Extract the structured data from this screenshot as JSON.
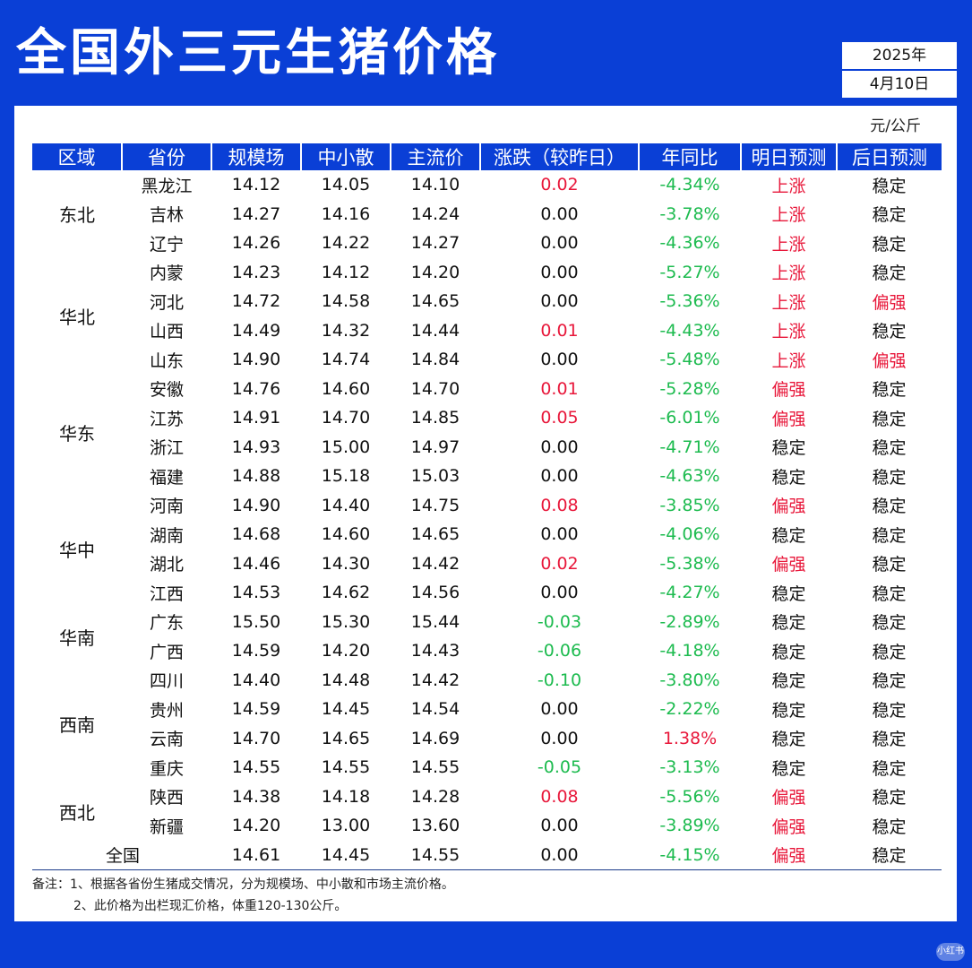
{
  "title": "全国外三元生猪价格",
  "date": {
    "year": "2025年",
    "month_day": "4月10日"
  },
  "unit": "元/公斤",
  "headers": [
    "区域",
    "省份",
    "规模场",
    "中小散",
    "主流价",
    "涨跌（较昨日）",
    "年同比",
    "明日预测",
    "后日预测"
  ],
  "regions": [
    {
      "name": "东北",
      "span": 3
    },
    {
      "name": "华北",
      "span": 4
    },
    {
      "name": "华东",
      "span": 4
    },
    {
      "name": "华中",
      "span": 4
    },
    {
      "name": "华南",
      "span": 2
    },
    {
      "name": "西南",
      "span": 4
    },
    {
      "name": "西北",
      "span": 2
    }
  ],
  "rows": [
    {
      "province": "黑龙江",
      "scale": "14.12",
      "small": "14.05",
      "main": "14.10",
      "change": "0.02",
      "change_dir": "up",
      "yoy": "-4.34%",
      "yoy_dir": "down",
      "tomorrow": "上涨",
      "tomorrow_dir": "up",
      "after": "稳定",
      "after_dir": ""
    },
    {
      "province": "吉林",
      "scale": "14.27",
      "small": "14.16",
      "main": "14.24",
      "change": "0.00",
      "change_dir": "",
      "yoy": "-3.78%",
      "yoy_dir": "down",
      "tomorrow": "上涨",
      "tomorrow_dir": "up",
      "after": "稳定",
      "after_dir": ""
    },
    {
      "province": "辽宁",
      "scale": "14.26",
      "small": "14.22",
      "main": "14.27",
      "change": "0.00",
      "change_dir": "",
      "yoy": "-4.36%",
      "yoy_dir": "down",
      "tomorrow": "上涨",
      "tomorrow_dir": "up",
      "after": "稳定",
      "after_dir": ""
    },
    {
      "province": "内蒙",
      "scale": "14.23",
      "small": "14.12",
      "main": "14.20",
      "change": "0.00",
      "change_dir": "",
      "yoy": "-5.27%",
      "yoy_dir": "down",
      "tomorrow": "上涨",
      "tomorrow_dir": "up",
      "after": "稳定",
      "after_dir": ""
    },
    {
      "province": "河北",
      "scale": "14.72",
      "small": "14.58",
      "main": "14.65",
      "change": "0.00",
      "change_dir": "",
      "yoy": "-5.36%",
      "yoy_dir": "down",
      "tomorrow": "上涨",
      "tomorrow_dir": "up",
      "after": "偏强",
      "after_dir": "up"
    },
    {
      "province": "山西",
      "scale": "14.49",
      "small": "14.32",
      "main": "14.44",
      "change": "0.01",
      "change_dir": "up",
      "yoy": "-4.43%",
      "yoy_dir": "down",
      "tomorrow": "上涨",
      "tomorrow_dir": "up",
      "after": "稳定",
      "after_dir": ""
    },
    {
      "province": "山东",
      "scale": "14.90",
      "small": "14.74",
      "main": "14.84",
      "change": "0.00",
      "change_dir": "",
      "yoy": "-5.48%",
      "yoy_dir": "down",
      "tomorrow": "上涨",
      "tomorrow_dir": "up",
      "after": "偏强",
      "after_dir": "up"
    },
    {
      "province": "安徽",
      "scale": "14.76",
      "small": "14.60",
      "main": "14.70",
      "change": "0.01",
      "change_dir": "up",
      "yoy": "-5.28%",
      "yoy_dir": "down",
      "tomorrow": "偏强",
      "tomorrow_dir": "up",
      "after": "稳定",
      "after_dir": ""
    },
    {
      "province": "江苏",
      "scale": "14.91",
      "small": "14.70",
      "main": "14.85",
      "change": "0.05",
      "change_dir": "up",
      "yoy": "-6.01%",
      "yoy_dir": "down",
      "tomorrow": "偏强",
      "tomorrow_dir": "up",
      "after": "稳定",
      "after_dir": ""
    },
    {
      "province": "浙江",
      "scale": "14.93",
      "small": "15.00",
      "main": "14.97",
      "change": "0.00",
      "change_dir": "",
      "yoy": "-4.71%",
      "yoy_dir": "down",
      "tomorrow": "稳定",
      "tomorrow_dir": "",
      "after": "稳定",
      "after_dir": ""
    },
    {
      "province": "福建",
      "scale": "14.88",
      "small": "15.18",
      "main": "15.03",
      "change": "0.00",
      "change_dir": "",
      "yoy": "-4.63%",
      "yoy_dir": "down",
      "tomorrow": "稳定",
      "tomorrow_dir": "",
      "after": "稳定",
      "after_dir": ""
    },
    {
      "province": "河南",
      "scale": "14.90",
      "small": "14.40",
      "main": "14.75",
      "change": "0.08",
      "change_dir": "up",
      "yoy": "-3.85%",
      "yoy_dir": "down",
      "tomorrow": "偏强",
      "tomorrow_dir": "up",
      "after": "稳定",
      "after_dir": ""
    },
    {
      "province": "湖南",
      "scale": "14.68",
      "small": "14.60",
      "main": "14.65",
      "change": "0.00",
      "change_dir": "",
      "yoy": "-4.06%",
      "yoy_dir": "down",
      "tomorrow": "稳定",
      "tomorrow_dir": "",
      "after": "稳定",
      "after_dir": ""
    },
    {
      "province": "湖北",
      "scale": "14.46",
      "small": "14.30",
      "main": "14.42",
      "change": "0.02",
      "change_dir": "up",
      "yoy": "-5.38%",
      "yoy_dir": "down",
      "tomorrow": "偏强",
      "tomorrow_dir": "up",
      "after": "稳定",
      "after_dir": ""
    },
    {
      "province": "江西",
      "scale": "14.53",
      "small": "14.62",
      "main": "14.56",
      "change": "0.00",
      "change_dir": "",
      "yoy": "-4.27%",
      "yoy_dir": "down",
      "tomorrow": "稳定",
      "tomorrow_dir": "",
      "after": "稳定",
      "after_dir": ""
    },
    {
      "province": "广东",
      "scale": "15.50",
      "small": "15.30",
      "main": "15.44",
      "change": "-0.03",
      "change_dir": "down",
      "yoy": "-2.89%",
      "yoy_dir": "down",
      "tomorrow": "稳定",
      "tomorrow_dir": "",
      "after": "稳定",
      "after_dir": ""
    },
    {
      "province": "广西",
      "scale": "14.59",
      "small": "14.20",
      "main": "14.43",
      "change": "-0.06",
      "change_dir": "down",
      "yoy": "-4.18%",
      "yoy_dir": "down",
      "tomorrow": "稳定",
      "tomorrow_dir": "",
      "after": "稳定",
      "after_dir": ""
    },
    {
      "province": "四川",
      "scale": "14.40",
      "small": "14.48",
      "main": "14.42",
      "change": "-0.10",
      "change_dir": "down",
      "yoy": "-3.80%",
      "yoy_dir": "down",
      "tomorrow": "稳定",
      "tomorrow_dir": "",
      "after": "稳定",
      "after_dir": ""
    },
    {
      "province": "贵州",
      "scale": "14.59",
      "small": "14.45",
      "main": "14.54",
      "change": "0.00",
      "change_dir": "",
      "yoy": "-2.22%",
      "yoy_dir": "down",
      "tomorrow": "稳定",
      "tomorrow_dir": "",
      "after": "稳定",
      "after_dir": ""
    },
    {
      "province": "云南",
      "scale": "14.70",
      "small": "14.65",
      "main": "14.69",
      "change": "0.00",
      "change_dir": "",
      "yoy": "1.38%",
      "yoy_dir": "up",
      "tomorrow": "稳定",
      "tomorrow_dir": "",
      "after": "稳定",
      "after_dir": ""
    },
    {
      "province": "重庆",
      "scale": "14.55",
      "small": "14.55",
      "main": "14.55",
      "change": "-0.05",
      "change_dir": "down",
      "yoy": "-3.13%",
      "yoy_dir": "down",
      "tomorrow": "稳定",
      "tomorrow_dir": "",
      "after": "稳定",
      "after_dir": ""
    },
    {
      "province": "陕西",
      "scale": "14.38",
      "small": "14.18",
      "main": "14.28",
      "change": "0.08",
      "change_dir": "up",
      "yoy": "-5.56%",
      "yoy_dir": "down",
      "tomorrow": "偏强",
      "tomorrow_dir": "up",
      "after": "稳定",
      "after_dir": ""
    },
    {
      "province": "新疆",
      "scale": "14.20",
      "small": "13.00",
      "main": "13.60",
      "change": "0.00",
      "change_dir": "",
      "yoy": "-3.89%",
      "yoy_dir": "down",
      "tomorrow": "偏强",
      "tomorrow_dir": "up",
      "after": "稳定",
      "after_dir": ""
    }
  ],
  "total": {
    "label": "全国",
    "scale": "14.61",
    "small": "14.45",
    "main": "14.55",
    "change": "0.00",
    "change_dir": "",
    "yoy": "-4.15%",
    "yoy_dir": "down",
    "tomorrow": "偏强",
    "tomorrow_dir": "up",
    "after": "稳定",
    "after_dir": ""
  },
  "notes": [
    "备注：1、根据各省份生猪成交情况，分为规模场、中小散和市场主流价格。",
    "2、此价格为出栏现汇价格，体重120-130公斤。"
  ],
  "watermark": "小红书",
  "colors": {
    "brand_blue": "#0a3fd6",
    "up_red": "#e8173a",
    "down_green": "#1dbb4f"
  }
}
